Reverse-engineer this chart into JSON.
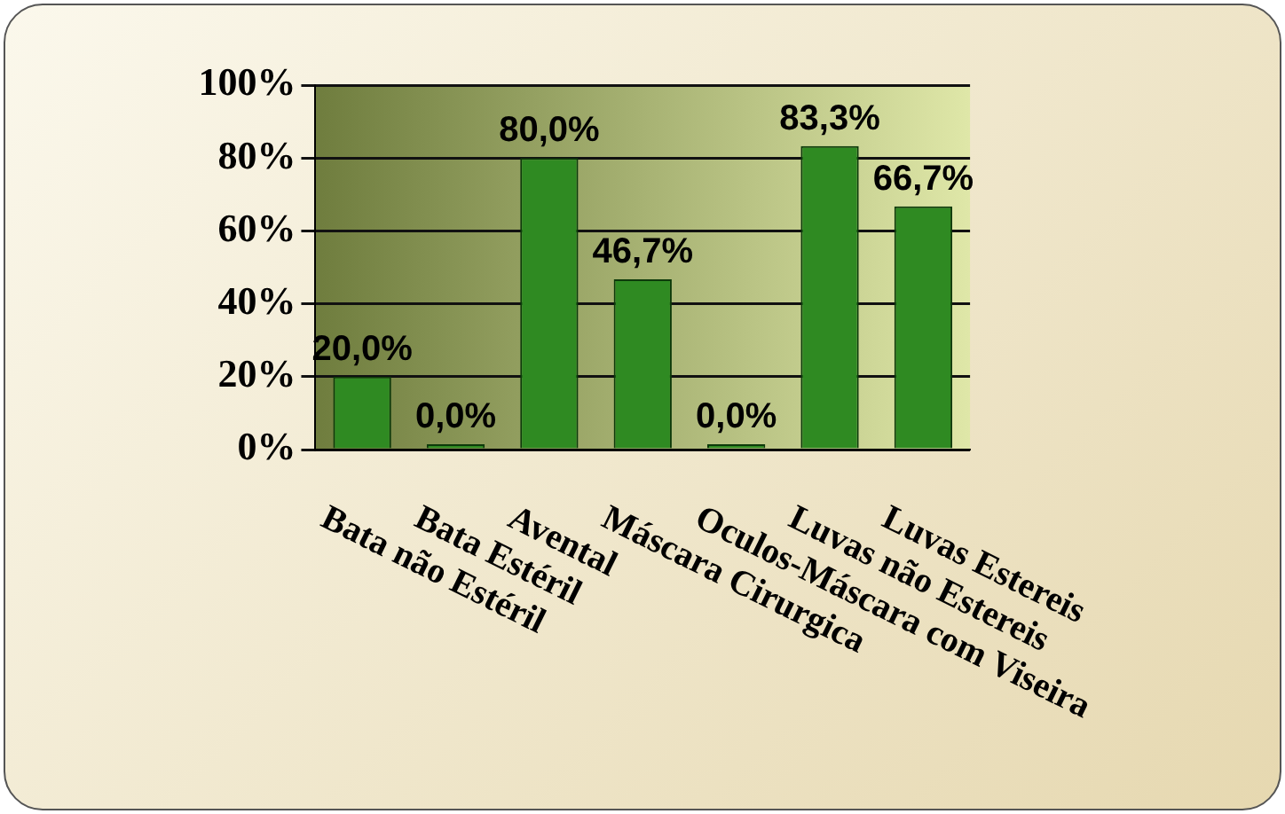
{
  "chart_data": {
    "type": "bar",
    "categories": [
      "Bata não Estéril",
      "Bata Estéril",
      "Avental",
      "Máscara Cirurgica",
      "Oculos-Máscara com Viseira",
      "Luvas não Estereis",
      "Luvas Estereis"
    ],
    "values": [
      20,
      0,
      80,
      46.7,
      0,
      83.3,
      66.7
    ],
    "value_labels": [
      "20,0%",
      "0,0%",
      "80,0%",
      "46,7%",
      "0,0%",
      "83,3%",
      "66,7%"
    ],
    "color": "#2f8a22",
    "ylim": [
      0,
      100
    ],
    "yticks": [
      {
        "value": 0,
        "label": "0%"
      },
      {
        "value": 20,
        "label": "20%"
      },
      {
        "value": 40,
        "label": "40%"
      },
      {
        "value": 60,
        "label": "60%"
      },
      {
        "value": 80,
        "label": "80%"
      },
      {
        "value": 100,
        "label": "100%"
      }
    ],
    "grid": "y",
    "legend": false
  }
}
